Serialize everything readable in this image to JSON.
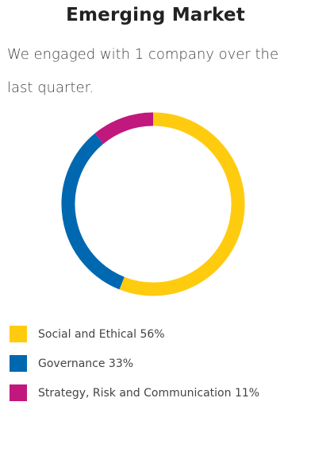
{
  "header": {
    "title": "Emerging Market",
    "description": "We engaged with 1 company over the last quarter."
  },
  "chart_data": {
    "type": "pie",
    "style": "donut",
    "categories": [
      "Social and Ethical",
      "Governance",
      "Strategy, Risk and Communication"
    ],
    "values": [
      56,
      33,
      11
    ],
    "unit": "%",
    "colors": [
      "#FFCB0F",
      "#0068B0",
      "#C0187D"
    ],
    "legend_position": "bottom-left",
    "legend": [
      {
        "label": "Social and Ethical 56%",
        "color": "#FFCB0F"
      },
      {
        "label": "Governance 33%",
        "color": "#0068B0"
      },
      {
        "label": "Strategy, Risk and Communication 11%",
        "color": "#C0187D"
      }
    ]
  }
}
